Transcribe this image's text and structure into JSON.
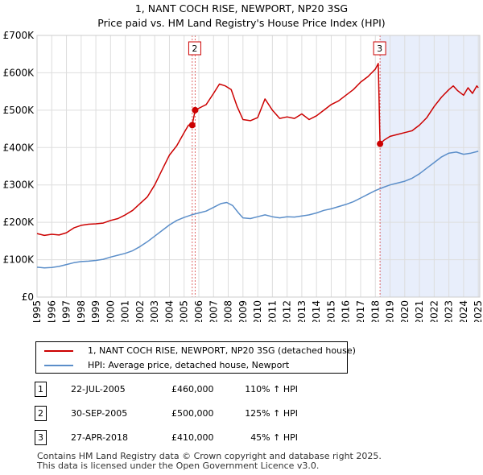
{
  "chart_data": {
    "type": "line",
    "title": "1, NANT COCH RISE, NEWPORT, NP20 3SG",
    "subtitle": "Price paid vs. HM Land Registry's House Price Index (HPI)",
    "xlabel": "",
    "ylabel": "",
    "xlim": [
      1995,
      2025.1
    ],
    "ylim": [
      0,
      700000
    ],
    "x_ticks": [
      1995,
      1996,
      1997,
      1998,
      1999,
      2000,
      2001,
      2002,
      2003,
      2004,
      2005,
      2006,
      2007,
      2008,
      2009,
      2010,
      2011,
      2012,
      2013,
      2014,
      2015,
      2016,
      2017,
      2018,
      2019,
      2020,
      2021,
      2022,
      2023,
      2024,
      2025
    ],
    "x_tick_labels": [
      "1995",
      "1996",
      "1997",
      "1998",
      "1999",
      "2000",
      "2001",
      "2002",
      "2003",
      "2004",
      "2005",
      "2006",
      "2007",
      "2008",
      "2009",
      "2010",
      "2011",
      "2012",
      "2013",
      "2014",
      "2015",
      "2016",
      "2017",
      "2018",
      "2019",
      "2020",
      "2021",
      "2022",
      "2023",
      "2024",
      "2025"
    ],
    "y_ticks": [
      0,
      100000,
      200000,
      300000,
      400000,
      500000,
      600000,
      700000
    ],
    "y_tick_labels": [
      "£0",
      "£100K",
      "£200K",
      "£300K",
      "£400K",
      "£500K",
      "£600K",
      "£700K"
    ],
    "grid": true,
    "series": [
      {
        "name": "1, NANT COCH RISE, NEWPORT, NP20 3SG (detached house)",
        "color": "#cc0000",
        "points": [
          [
            1995.0,
            170000
          ],
          [
            1995.5,
            165000
          ],
          [
            1996.0,
            168000
          ],
          [
            1996.5,
            166000
          ],
          [
            1997.0,
            172000
          ],
          [
            1997.5,
            185000
          ],
          [
            1998.0,
            192000
          ],
          [
            1998.5,
            195000
          ],
          [
            1999.0,
            196000
          ],
          [
            1999.5,
            198000
          ],
          [
            2000.0,
            205000
          ],
          [
            2000.5,
            210000
          ],
          [
            2001.0,
            220000
          ],
          [
            2001.5,
            232000
          ],
          [
            2002.0,
            250000
          ],
          [
            2002.5,
            268000
          ],
          [
            2003.0,
            300000
          ],
          [
            2003.5,
            340000
          ],
          [
            2004.0,
            380000
          ],
          [
            2004.5,
            405000
          ],
          [
            2005.0,
            440000
          ],
          [
            2005.3,
            460000
          ],
          [
            2005.55,
            460000
          ],
          [
            2005.75,
            500000
          ],
          [
            2006.0,
            505000
          ],
          [
            2006.5,
            515000
          ],
          [
            2007.0,
            545000
          ],
          [
            2007.4,
            570000
          ],
          [
            2007.8,
            565000
          ],
          [
            2008.2,
            555000
          ],
          [
            2008.6,
            510000
          ],
          [
            2009.0,
            475000
          ],
          [
            2009.5,
            472000
          ],
          [
            2010.0,
            480000
          ],
          [
            2010.5,
            530000
          ],
          [
            2011.0,
            500000
          ],
          [
            2011.5,
            478000
          ],
          [
            2012.0,
            482000
          ],
          [
            2012.5,
            478000
          ],
          [
            2013.0,
            490000
          ],
          [
            2013.5,
            475000
          ],
          [
            2014.0,
            485000
          ],
          [
            2014.5,
            500000
          ],
          [
            2015.0,
            515000
          ],
          [
            2015.5,
            525000
          ],
          [
            2016.0,
            540000
          ],
          [
            2016.5,
            555000
          ],
          [
            2017.0,
            575000
          ],
          [
            2017.5,
            590000
          ],
          [
            2018.0,
            610000
          ],
          [
            2018.2,
            625000
          ],
          [
            2018.32,
            410000
          ],
          [
            2018.6,
            420000
          ],
          [
            2019.0,
            430000
          ],
          [
            2019.5,
            435000
          ],
          [
            2020.0,
            440000
          ],
          [
            2020.5,
            445000
          ],
          [
            2021.0,
            460000
          ],
          [
            2021.5,
            480000
          ],
          [
            2022.0,
            510000
          ],
          [
            2022.5,
            535000
          ],
          [
            2023.0,
            555000
          ],
          [
            2023.3,
            565000
          ],
          [
            2023.6,
            552000
          ],
          [
            2024.0,
            540000
          ],
          [
            2024.3,
            560000
          ],
          [
            2024.6,
            545000
          ],
          [
            2024.9,
            565000
          ],
          [
            2025.0,
            560000
          ]
        ]
      },
      {
        "name": "HPI: Average price, detached house, Newport",
        "color": "#5b8ec9",
        "points": [
          [
            1995.0,
            80000
          ],
          [
            1995.5,
            78000
          ],
          [
            1996.0,
            79000
          ],
          [
            1996.5,
            82000
          ],
          [
            1997.0,
            87000
          ],
          [
            1997.5,
            92000
          ],
          [
            1998.0,
            95000
          ],
          [
            1998.5,
            96000
          ],
          [
            1999.0,
            98000
          ],
          [
            1999.5,
            101000
          ],
          [
            2000.0,
            107000
          ],
          [
            2000.5,
            112000
          ],
          [
            2001.0,
            117000
          ],
          [
            2001.5,
            124000
          ],
          [
            2002.0,
            135000
          ],
          [
            2002.5,
            148000
          ],
          [
            2003.0,
            163000
          ],
          [
            2003.5,
            178000
          ],
          [
            2004.0,
            193000
          ],
          [
            2004.5,
            205000
          ],
          [
            2005.0,
            213000
          ],
          [
            2005.5,
            220000
          ],
          [
            2006.0,
            225000
          ],
          [
            2006.5,
            230000
          ],
          [
            2007.0,
            240000
          ],
          [
            2007.5,
            250000
          ],
          [
            2007.9,
            253000
          ],
          [
            2008.3,
            245000
          ],
          [
            2008.7,
            225000
          ],
          [
            2009.0,
            212000
          ],
          [
            2009.5,
            210000
          ],
          [
            2010.0,
            215000
          ],
          [
            2010.5,
            220000
          ],
          [
            2011.0,
            215000
          ],
          [
            2011.5,
            212000
          ],
          [
            2012.0,
            215000
          ],
          [
            2012.5,
            214000
          ],
          [
            2013.0,
            217000
          ],
          [
            2013.5,
            220000
          ],
          [
            2014.0,
            225000
          ],
          [
            2014.5,
            232000
          ],
          [
            2015.0,
            236000
          ],
          [
            2015.5,
            242000
          ],
          [
            2016.0,
            248000
          ],
          [
            2016.5,
            255000
          ],
          [
            2017.0,
            265000
          ],
          [
            2017.5,
            275000
          ],
          [
            2018.0,
            285000
          ],
          [
            2018.5,
            293000
          ],
          [
            2019.0,
            300000
          ],
          [
            2019.5,
            305000
          ],
          [
            2020.0,
            310000
          ],
          [
            2020.5,
            318000
          ],
          [
            2021.0,
            330000
          ],
          [
            2021.5,
            345000
          ],
          [
            2022.0,
            360000
          ],
          [
            2022.5,
            375000
          ],
          [
            2023.0,
            385000
          ],
          [
            2023.5,
            388000
          ],
          [
            2024.0,
            382000
          ],
          [
            2024.5,
            385000
          ],
          [
            2025.0,
            390000
          ]
        ]
      }
    ],
    "sales": [
      {
        "label": "1",
        "x": 2005.55,
        "price": 460000
      },
      {
        "label": "2",
        "x": 2005.75,
        "price": 500000
      },
      {
        "label": "3",
        "x": 2018.32,
        "price": 410000
      }
    ],
    "highlight_range": [
      2018.32,
      2025.1
    ],
    "colors": {
      "property": "#cc0000",
      "hpi": "#5b8ec9",
      "highlight": "#e8eefb",
      "marker_line": "#cc0000"
    }
  },
  "legend": {
    "property_label": "1, NANT COCH RISE, NEWPORT, NP20 3SG (detached house)",
    "hpi_label": "HPI: Average price, detached house, Newport"
  },
  "table": [
    {
      "num": "1",
      "date": "22-JUL-2005",
      "price": "£460,000",
      "hpi": "110% ↑ HPI"
    },
    {
      "num": "2",
      "date": "30-SEP-2005",
      "price": "£500,000",
      "hpi": "125% ↑ HPI"
    },
    {
      "num": "3",
      "date": "27-APR-2018",
      "price": "£410,000",
      "hpi": "45% ↑ HPI"
    }
  ],
  "footer": {
    "line1": "Contains HM Land Registry data © Crown copyright and database right 2025.",
    "line2": "This data is licensed under the Open Government Licence v3.0."
  }
}
